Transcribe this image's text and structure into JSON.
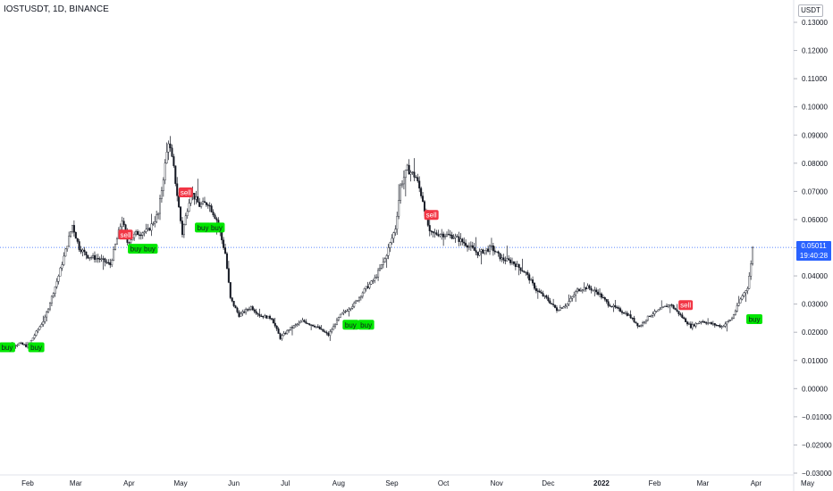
{
  "header": {
    "title": "IOSTUSDT, 1D, BINANCE"
  },
  "currency_button": "USDT",
  "last_price": {
    "value": "0.05011",
    "countdown": "19:40:28"
  },
  "colors": {
    "up": "#26a69a",
    "down": "#131722",
    "buy_label": "#00e600",
    "sell_label": "#f23645",
    "magenta_label": "#e040fb",
    "last_price_line": "#2962ff",
    "axis_text": "#131722",
    "marker_blue": "#2196f3"
  },
  "chart_data": {
    "type": "candlestick",
    "title": "IOSTUSDT, 1D, BINANCE",
    "y_axis": {
      "ylim": [
        -0.03,
        0.135
      ],
      "ticks": [
        "0.13000",
        "0.12000",
        "0.11000",
        "0.10000",
        "0.09000",
        "0.08000",
        "0.07000",
        "0.06000",
        "0.05000",
        "0.04000",
        "0.03000",
        "0.02000",
        "0.01000",
        "0.00000",
        "−0.01000",
        "−0.02000",
        "−0.03000"
      ],
      "tick_values": [
        0.13,
        0.12,
        0.11,
        0.1,
        0.09,
        0.08,
        0.07,
        0.06,
        0.05,
        0.04,
        0.03,
        0.02,
        0.01,
        0.0,
        -0.01,
        -0.02,
        -0.03
      ],
      "side": "right"
    },
    "x_axis": {
      "labels": [
        "Feb",
        "Mar",
        "Apr",
        "May",
        "Jun",
        "Jul",
        "Aug",
        "Sep",
        "Oct",
        "Nov",
        "Dec",
        "2022",
        "Feb",
        "Mar",
        "Apr",
        "May"
      ],
      "label_day_index": [
        0,
        28,
        59,
        89,
        120,
        150,
        181,
        212,
        242,
        273,
        303,
        334,
        365,
        393,
        424,
        454
      ]
    },
    "start_day_index": -15,
    "price_path": [
      [
        -15,
        0.014
      ],
      [
        -5,
        0.016
      ],
      [
        0,
        0.015
      ],
      [
        10,
        0.025
      ],
      [
        18,
        0.04
      ],
      [
        26,
        0.058
      ],
      [
        30,
        0.05
      ],
      [
        35,
        0.047
      ],
      [
        42,
        0.046
      ],
      [
        48,
        0.044
      ],
      [
        55,
        0.06
      ],
      [
        58,
        0.052
      ],
      [
        63,
        0.055
      ],
      [
        70,
        0.056
      ],
      [
        76,
        0.062
      ],
      [
        82,
        0.088
      ],
      [
        85,
        0.078
      ],
      [
        90,
        0.055
      ],
      [
        95,
        0.07
      ],
      [
        100,
        0.065
      ],
      [
        105,
        0.066
      ],
      [
        110,
        0.06
      ],
      [
        115,
        0.048
      ],
      [
        118,
        0.032
      ],
      [
        123,
        0.026
      ],
      [
        130,
        0.029
      ],
      [
        135,
        0.026
      ],
      [
        142,
        0.025
      ],
      [
        147,
        0.018
      ],
      [
        152,
        0.021
      ],
      [
        160,
        0.024
      ],
      [
        168,
        0.022
      ],
      [
        175,
        0.019
      ],
      [
        182,
        0.026
      ],
      [
        190,
        0.03
      ],
      [
        196,
        0.035
      ],
      [
        202,
        0.039
      ],
      [
        208,
        0.046
      ],
      [
        214,
        0.057
      ],
      [
        217,
        0.072
      ],
      [
        221,
        0.078
      ],
      [
        226,
        0.075
      ],
      [
        230,
        0.067
      ],
      [
        234,
        0.055
      ],
      [
        240,
        0.055
      ],
      [
        248,
        0.054
      ],
      [
        256,
        0.051
      ],
      [
        262,
        0.048
      ],
      [
        270,
        0.05
      ],
      [
        276,
        0.046
      ],
      [
        282,
        0.045
      ],
      [
        290,
        0.041
      ],
      [
        296,
        0.035
      ],
      [
        302,
        0.032
      ],
      [
        308,
        0.028
      ],
      [
        314,
        0.03
      ],
      [
        320,
        0.035
      ],
      [
        326,
        0.036
      ],
      [
        332,
        0.034
      ],
      [
        338,
        0.03
      ],
      [
        344,
        0.028
      ],
      [
        350,
        0.026
      ],
      [
        356,
        0.022
      ],
      [
        362,
        0.026
      ],
      [
        368,
        0.028
      ],
      [
        374,
        0.03
      ],
      [
        380,
        0.026
      ],
      [
        386,
        0.022
      ],
      [
        392,
        0.024
      ],
      [
        398,
        0.023
      ],
      [
        404,
        0.022
      ],
      [
        410,
        0.025
      ],
      [
        416,
        0.033
      ],
      [
        419,
        0.036
      ],
      [
        422,
        0.048
      ]
    ],
    "signals": [
      {
        "label": "buy",
        "day": -12,
        "price": 0.0145
      },
      {
        "label": "buy",
        "day": 5,
        "price": 0.0145
      },
      {
        "label": "sell",
        "day": 57,
        "price": 0.0545
      },
      {
        "label": "buy",
        "day": 63,
        "price": 0.0495
      },
      {
        "label": "buy",
        "day": 71,
        "price": 0.0495
      },
      {
        "label": "sell",
        "day": 92,
        "price": 0.0695
      },
      {
        "label": "buy",
        "day": 102,
        "price": 0.057
      },
      {
        "label": "buy",
        "day": 110,
        "price": 0.057
      },
      {
        "label": "sell",
        "day": 235,
        "price": 0.0615
      },
      {
        "label": "buy",
        "day": 188,
        "price": 0.0225
      },
      {
        "label": "buy",
        "day": 197,
        "price": 0.0225
      },
      {
        "label": "sell",
        "day": 383,
        "price": 0.0295
      },
      {
        "label": "buy",
        "day": 423,
        "price": 0.0245
      }
    ],
    "latest_close": 0.05011
  }
}
